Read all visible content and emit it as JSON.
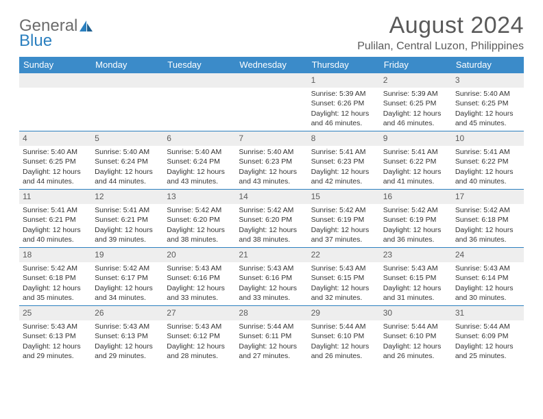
{
  "logo": {
    "text1": "General",
    "text2": "Blue"
  },
  "title": "August 2024",
  "location": "Pulilan, Central Luzon, Philippines",
  "colors": {
    "header_bg": "#3b8bc9",
    "header_text": "#ffffff",
    "daynum_bg": "#eeeeee",
    "week_border": "#2a7fbf",
    "body_text": "#333333",
    "title_text": "#5a5a5a",
    "logo_gray": "#6b6b6b",
    "logo_blue": "#2a7fbf"
  },
  "day_names": [
    "Sunday",
    "Monday",
    "Tuesday",
    "Wednesday",
    "Thursday",
    "Friday",
    "Saturday"
  ],
  "weeks": [
    [
      {
        "n": "",
        "sr": "",
        "ss": "",
        "dl": ""
      },
      {
        "n": "",
        "sr": "",
        "ss": "",
        "dl": ""
      },
      {
        "n": "",
        "sr": "",
        "ss": "",
        "dl": ""
      },
      {
        "n": "",
        "sr": "",
        "ss": "",
        "dl": ""
      },
      {
        "n": "1",
        "sr": "Sunrise: 5:39 AM",
        "ss": "Sunset: 6:26 PM",
        "dl": "Daylight: 12 hours and 46 minutes."
      },
      {
        "n": "2",
        "sr": "Sunrise: 5:39 AM",
        "ss": "Sunset: 6:25 PM",
        "dl": "Daylight: 12 hours and 46 minutes."
      },
      {
        "n": "3",
        "sr": "Sunrise: 5:40 AM",
        "ss": "Sunset: 6:25 PM",
        "dl": "Daylight: 12 hours and 45 minutes."
      }
    ],
    [
      {
        "n": "4",
        "sr": "Sunrise: 5:40 AM",
        "ss": "Sunset: 6:25 PM",
        "dl": "Daylight: 12 hours and 44 minutes."
      },
      {
        "n": "5",
        "sr": "Sunrise: 5:40 AM",
        "ss": "Sunset: 6:24 PM",
        "dl": "Daylight: 12 hours and 44 minutes."
      },
      {
        "n": "6",
        "sr": "Sunrise: 5:40 AM",
        "ss": "Sunset: 6:24 PM",
        "dl": "Daylight: 12 hours and 43 minutes."
      },
      {
        "n": "7",
        "sr": "Sunrise: 5:40 AM",
        "ss": "Sunset: 6:23 PM",
        "dl": "Daylight: 12 hours and 43 minutes."
      },
      {
        "n": "8",
        "sr": "Sunrise: 5:41 AM",
        "ss": "Sunset: 6:23 PM",
        "dl": "Daylight: 12 hours and 42 minutes."
      },
      {
        "n": "9",
        "sr": "Sunrise: 5:41 AM",
        "ss": "Sunset: 6:22 PM",
        "dl": "Daylight: 12 hours and 41 minutes."
      },
      {
        "n": "10",
        "sr": "Sunrise: 5:41 AM",
        "ss": "Sunset: 6:22 PM",
        "dl": "Daylight: 12 hours and 40 minutes."
      }
    ],
    [
      {
        "n": "11",
        "sr": "Sunrise: 5:41 AM",
        "ss": "Sunset: 6:21 PM",
        "dl": "Daylight: 12 hours and 40 minutes."
      },
      {
        "n": "12",
        "sr": "Sunrise: 5:41 AM",
        "ss": "Sunset: 6:21 PM",
        "dl": "Daylight: 12 hours and 39 minutes."
      },
      {
        "n": "13",
        "sr": "Sunrise: 5:42 AM",
        "ss": "Sunset: 6:20 PM",
        "dl": "Daylight: 12 hours and 38 minutes."
      },
      {
        "n": "14",
        "sr": "Sunrise: 5:42 AM",
        "ss": "Sunset: 6:20 PM",
        "dl": "Daylight: 12 hours and 38 minutes."
      },
      {
        "n": "15",
        "sr": "Sunrise: 5:42 AM",
        "ss": "Sunset: 6:19 PM",
        "dl": "Daylight: 12 hours and 37 minutes."
      },
      {
        "n": "16",
        "sr": "Sunrise: 5:42 AM",
        "ss": "Sunset: 6:19 PM",
        "dl": "Daylight: 12 hours and 36 minutes."
      },
      {
        "n": "17",
        "sr": "Sunrise: 5:42 AM",
        "ss": "Sunset: 6:18 PM",
        "dl": "Daylight: 12 hours and 36 minutes."
      }
    ],
    [
      {
        "n": "18",
        "sr": "Sunrise: 5:42 AM",
        "ss": "Sunset: 6:18 PM",
        "dl": "Daylight: 12 hours and 35 minutes."
      },
      {
        "n": "19",
        "sr": "Sunrise: 5:42 AM",
        "ss": "Sunset: 6:17 PM",
        "dl": "Daylight: 12 hours and 34 minutes."
      },
      {
        "n": "20",
        "sr": "Sunrise: 5:43 AM",
        "ss": "Sunset: 6:16 PM",
        "dl": "Daylight: 12 hours and 33 minutes."
      },
      {
        "n": "21",
        "sr": "Sunrise: 5:43 AM",
        "ss": "Sunset: 6:16 PM",
        "dl": "Daylight: 12 hours and 33 minutes."
      },
      {
        "n": "22",
        "sr": "Sunrise: 5:43 AM",
        "ss": "Sunset: 6:15 PM",
        "dl": "Daylight: 12 hours and 32 minutes."
      },
      {
        "n": "23",
        "sr": "Sunrise: 5:43 AM",
        "ss": "Sunset: 6:15 PM",
        "dl": "Daylight: 12 hours and 31 minutes."
      },
      {
        "n": "24",
        "sr": "Sunrise: 5:43 AM",
        "ss": "Sunset: 6:14 PM",
        "dl": "Daylight: 12 hours and 30 minutes."
      }
    ],
    [
      {
        "n": "25",
        "sr": "Sunrise: 5:43 AM",
        "ss": "Sunset: 6:13 PM",
        "dl": "Daylight: 12 hours and 29 minutes."
      },
      {
        "n": "26",
        "sr": "Sunrise: 5:43 AM",
        "ss": "Sunset: 6:13 PM",
        "dl": "Daylight: 12 hours and 29 minutes."
      },
      {
        "n": "27",
        "sr": "Sunrise: 5:43 AM",
        "ss": "Sunset: 6:12 PM",
        "dl": "Daylight: 12 hours and 28 minutes."
      },
      {
        "n": "28",
        "sr": "Sunrise: 5:44 AM",
        "ss": "Sunset: 6:11 PM",
        "dl": "Daylight: 12 hours and 27 minutes."
      },
      {
        "n": "29",
        "sr": "Sunrise: 5:44 AM",
        "ss": "Sunset: 6:10 PM",
        "dl": "Daylight: 12 hours and 26 minutes."
      },
      {
        "n": "30",
        "sr": "Sunrise: 5:44 AM",
        "ss": "Sunset: 6:10 PM",
        "dl": "Daylight: 12 hours and 26 minutes."
      },
      {
        "n": "31",
        "sr": "Sunrise: 5:44 AM",
        "ss": "Sunset: 6:09 PM",
        "dl": "Daylight: 12 hours and 25 minutes."
      }
    ]
  ]
}
